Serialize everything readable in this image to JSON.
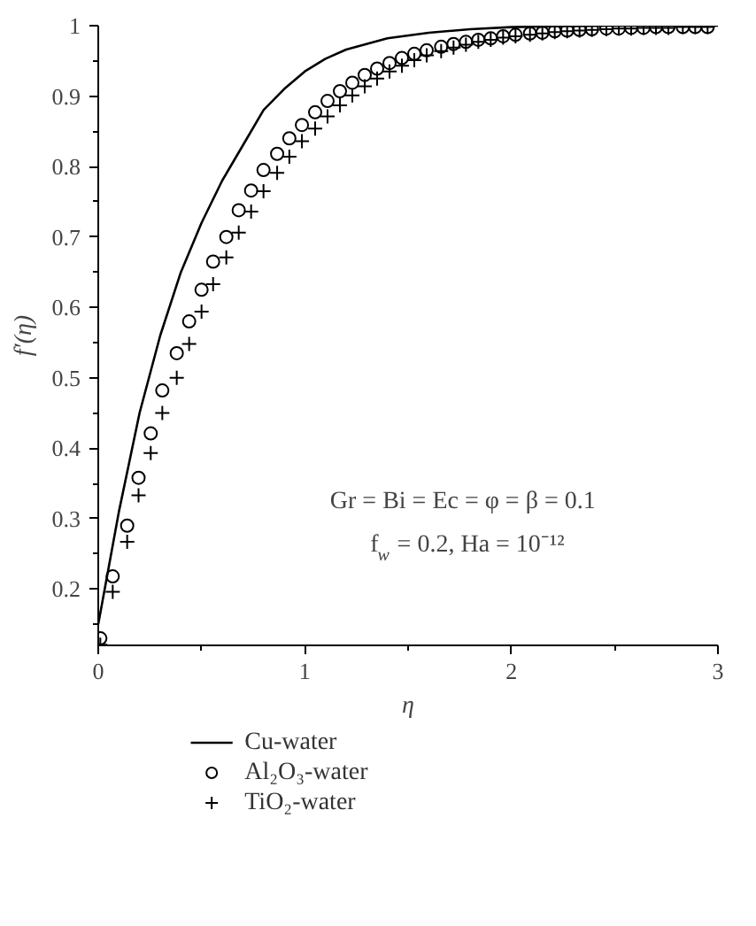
{
  "chart_data": {
    "type": "line",
    "xlabel": "η",
    "ylabel": "f′(η)",
    "xlim": [
      0,
      3
    ],
    "ylim": [
      0.12,
      1
    ],
    "xticks": [
      0,
      {
        "value": 0.5,
        "label": null
      },
      1,
      {
        "value": 1.5,
        "label": null
      },
      2,
      {
        "value": 2.5,
        "label": null
      },
      3
    ],
    "yticks": [
      {
        "value": 0.15,
        "label": null
      },
      0.2,
      {
        "value": 0.25,
        "label": null
      },
      0.3,
      {
        "value": 0.35,
        "label": null
      },
      0.4,
      {
        "value": 0.45,
        "label": null
      },
      0.5,
      {
        "value": 0.55,
        "label": null
      },
      0.6,
      {
        "value": 0.65,
        "label": null
      },
      0.7,
      {
        "value": 0.75,
        "label": null
      },
      0.8,
      {
        "value": 0.85,
        "label": null
      },
      0.9,
      {
        "value": 0.95,
        "label": null
      },
      1
    ],
    "grid": false,
    "legend": "bottom",
    "annotations": [
      "Gr = Bi = Ec = φ = β = 0.1",
      "f$_{w}$ = 0.2, Ha = 10⁻¹²"
    ],
    "series": [
      {
        "name": "Cu-water",
        "color": "#000000",
        "marker": "none",
        "line_style": "solid",
        "x": [
          0,
          0.05,
          0.1,
          0.15,
          0.2,
          0.3,
          0.4,
          0.5,
          0.6,
          0.7,
          0.8,
          0.9,
          1.0,
          1.1,
          1.2,
          1.4,
          1.6,
          1.8,
          2.0,
          2.2,
          2.5,
          3.0
        ],
        "values": [
          0.15,
          0.23,
          0.31,
          0.38,
          0.45,
          0.56,
          0.65,
          0.72,
          0.78,
          0.83,
          0.88,
          0.91,
          0.935,
          0.953,
          0.966,
          0.982,
          0.99,
          0.995,
          0.998,
          0.999,
          1.0,
          1.0
        ]
      },
      {
        "name": "Al₂O₃-water",
        "type": "scatter",
        "color": "#000000",
        "marker": "circle",
        "x": [
          0.01,
          0.07,
          0.14,
          0.195,
          0.254,
          0.31,
          0.38,
          0.44,
          0.5,
          0.556,
          0.62,
          0.68,
          0.74,
          0.8,
          0.866,
          0.925,
          0.986,
          1.05,
          1.11,
          1.17,
          1.23,
          1.29,
          1.35,
          1.41,
          1.47,
          1.53,
          1.59,
          1.66,
          1.72,
          1.78,
          1.84,
          1.9,
          1.96,
          2.02,
          2.09,
          2.15,
          2.21,
          2.27,
          2.33,
          2.39,
          2.46,
          2.52,
          2.58,
          2.64,
          2.7,
          2.76,
          2.83,
          2.89,
          2.95
        ],
        "values": [
          0.13,
          0.218,
          0.29,
          0.358,
          0.421,
          0.482,
          0.535,
          0.58,
          0.625,
          0.665,
          0.7,
          0.738,
          0.766,
          0.795,
          0.818,
          0.84,
          0.859,
          0.877,
          0.893,
          0.907,
          0.919,
          0.93,
          0.939,
          0.947,
          0.954,
          0.96,
          0.965,
          0.97,
          0.974,
          0.977,
          0.98,
          0.982,
          0.985,
          0.987,
          0.989,
          0.99,
          0.992,
          0.993,
          0.994,
          0.995,
          0.996,
          0.996,
          0.997,
          0.997,
          0.998,
          0.998,
          0.998,
          0.998,
          0.998
        ]
      },
      {
        "name": "TiO₂-water",
        "type": "scatter",
        "color": "#000000",
        "marker": "cross",
        "x": [
          0.01,
          0.07,
          0.14,
          0.195,
          0.254,
          0.31,
          0.38,
          0.44,
          0.5,
          0.556,
          0.62,
          0.68,
          0.74,
          0.8,
          0.866,
          0.925,
          0.986,
          1.05,
          1.11,
          1.17,
          1.23,
          1.29,
          1.35,
          1.41,
          1.47,
          1.53,
          1.59,
          1.66,
          1.72,
          1.78,
          1.84,
          1.9,
          1.96,
          2.02,
          2.09,
          2.15,
          2.21,
          2.27,
          2.33,
          2.39,
          2.46,
          2.52,
          2.58,
          2.64,
          2.7,
          2.76,
          2.83,
          2.89,
          2.95
        ],
        "values": [
          0.121,
          0.196,
          0.267,
          0.333,
          0.393,
          0.45,
          0.5,
          0.548,
          0.594,
          0.633,
          0.671,
          0.706,
          0.736,
          0.765,
          0.791,
          0.814,
          0.836,
          0.854,
          0.871,
          0.887,
          0.901,
          0.914,
          0.925,
          0.935,
          0.943,
          0.951,
          0.958,
          0.964,
          0.969,
          0.973,
          0.977,
          0.98,
          0.983,
          0.985,
          0.987,
          0.989,
          0.991,
          0.992,
          0.993,
          0.994,
          0.995,
          0.996,
          0.996,
          0.997,
          0.997,
          0.997,
          0.998,
          0.998,
          0.998
        ]
      }
    ]
  }
}
